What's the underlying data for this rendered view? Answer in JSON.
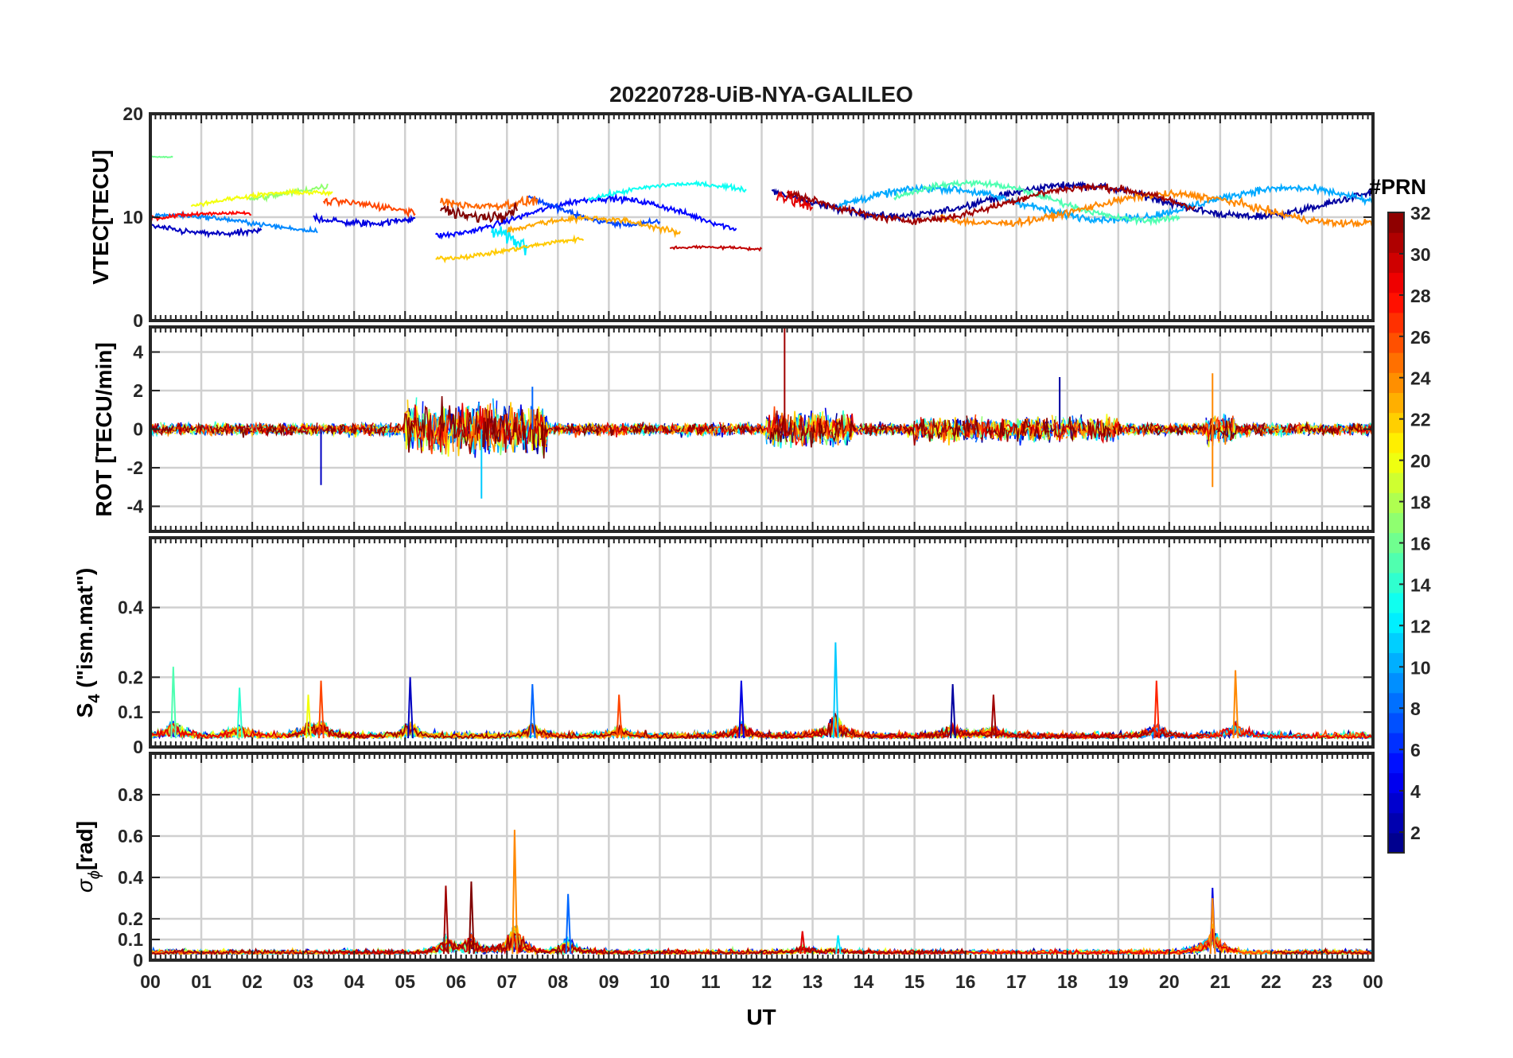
{
  "chart_data": {
    "type": "line",
    "title": "20220728-UiB-NYA-GALILEO",
    "xlabel": "UT",
    "x_ticks": [
      "00",
      "01",
      "02",
      "03",
      "04",
      "05",
      "06",
      "07",
      "08",
      "09",
      "10",
      "11",
      "12",
      "13",
      "14",
      "15",
      "16",
      "17",
      "18",
      "19",
      "20",
      "21",
      "22",
      "23",
      "00"
    ],
    "xlim_hours": [
      0,
      24
    ],
    "colorbar": {
      "title": "#PRN",
      "range": [
        1,
        32
      ],
      "ticks": [
        "2",
        "4",
        "6",
        "8",
        "10",
        "12",
        "14",
        "16",
        "18",
        "20",
        "22",
        "24",
        "26",
        "28",
        "30",
        "32"
      ],
      "colormap": "jet"
    },
    "panels": [
      {
        "id": "vtec",
        "ylabel": "VTEC[TECU]",
        "ylim": [
          0,
          20
        ],
        "y_ticks": [
          0,
          10,
          20
        ],
        "y_tick_labels": [
          "0",
          "10",
          "20"
        ],
        "series": [
          {
            "prn": 2,
            "start": 12.2,
            "end": 24,
            "base": 11.6,
            "amp": 1.5,
            "noise": 0.5
          },
          {
            "prn": 3,
            "start": 0,
            "end": 2.2,
            "base": 9.6,
            "amp": 1.2,
            "noise": 0.4
          },
          {
            "prn": 4,
            "start": 3.2,
            "end": 5.2,
            "base": 11,
            "amp": 1.6,
            "noise": 0.5
          },
          {
            "prn": 5,
            "start": 5.6,
            "end": 11.5,
            "base": 10,
            "amp": 1.8,
            "noise": 0.4
          },
          {
            "prn": 7,
            "start": 7.4,
            "end": 10,
            "base": 11.5,
            "amp": 2.2,
            "noise": 0.4
          },
          {
            "prn": 9,
            "start": 0.1,
            "end": 3.3,
            "base": 9.4,
            "amp": 0.8,
            "noise": 0.3
          },
          {
            "prn": 10,
            "start": 13.5,
            "end": 24,
            "base": 11.3,
            "amp": 1.5,
            "noise": 0.5
          },
          {
            "prn": 12,
            "start": 6.7,
            "end": 7.4,
            "base": 6.5,
            "amp": 3.0,
            "noise": 1.0
          },
          {
            "prn": 13,
            "start": 8.6,
            "end": 11.7,
            "base": 12,
            "amp": 1.2,
            "noise": 0.3
          },
          {
            "prn": 15,
            "start": 14.6,
            "end": 20.2,
            "base": 11.5,
            "amp": 1.8,
            "noise": 0.4
          },
          {
            "prn": 16,
            "start": 0,
            "end": 0.45,
            "base": 16,
            "amp": 0.2,
            "noise": 0.1
          },
          {
            "prn": 17,
            "start": 1.9,
            "end": 3.5,
            "base": 12.5,
            "amp": 1.0,
            "noise": 0.4
          },
          {
            "prn": 20,
            "start": 0.8,
            "end": 3.6,
            "base": 11.5,
            "amp": 0.9,
            "noise": 0.3
          },
          {
            "prn": 22,
            "start": 5.6,
            "end": 8.5,
            "base": 7,
            "amp": 1.0,
            "noise": 0.3
          },
          {
            "prn": 23,
            "start": 7.0,
            "end": 10.4,
            "base": 8.5,
            "amp": 1.4,
            "noise": 0.4
          },
          {
            "prn": 24,
            "start": 15.5,
            "end": 24,
            "base": 10.8,
            "amp": 1.4,
            "noise": 0.5
          },
          {
            "prn": 25,
            "start": 5.7,
            "end": 7.6,
            "base": 12.5,
            "amp": 1.4,
            "noise": 0.6
          },
          {
            "prn": 26,
            "start": 3.4,
            "end": 5.2,
            "base": 10.5,
            "amp": 1.0,
            "noise": 0.5
          },
          {
            "prn": 28,
            "start": 0,
            "end": 2.0,
            "base": 9.8,
            "amp": 0.6,
            "noise": 0.3
          },
          {
            "prn": 29,
            "start": 12.3,
            "end": 13.0,
            "base": 10,
            "amp": 3.0,
            "noise": 1.0
          },
          {
            "prn": 30,
            "start": 10.2,
            "end": 12.0,
            "base": 6.7,
            "amp": 0.4,
            "noise": 0.2
          },
          {
            "prn": 31,
            "start": 12.5,
            "end": 20.5,
            "base": 11.3,
            "amp": 1.6,
            "noise": 0.5
          },
          {
            "prn": 32,
            "start": 5.7,
            "end": 7.2,
            "base": 14,
            "amp": 4.0,
            "noise": 0.8
          }
        ]
      },
      {
        "id": "rot",
        "ylabel": "ROT [TECU/min]",
        "ylim": [
          -5.3,
          5.3
        ],
        "y_ticks": [
          -4,
          -2,
          0,
          2,
          4
        ],
        "y_tick_labels": [
          "-4",
          "-2",
          "0",
          "2",
          "4"
        ],
        "activity": [
          {
            "start": 0,
            "end": 24,
            "level": 0.3
          },
          {
            "start": 5.0,
            "end": 7.8,
            "level": 1.3
          },
          {
            "start": 12.1,
            "end": 13.8,
            "level": 0.9
          },
          {
            "start": 15.0,
            "end": 19.0,
            "level": 0.6
          },
          {
            "start": 20.7,
            "end": 21.3,
            "level": 0.8
          }
        ],
        "peaks": [
          {
            "t": 12.45,
            "v": 5.3,
            "prn": 31
          },
          {
            "t": 20.85,
            "v": 2.9,
            "prn": 24
          },
          {
            "t": 20.85,
            "v": -3.0,
            "prn": 24
          },
          {
            "t": 6.5,
            "v": -3.6,
            "prn": 11
          },
          {
            "t": 3.35,
            "v": -2.9,
            "prn": 3
          },
          {
            "t": 7.5,
            "v": 2.2,
            "prn": 8
          },
          {
            "t": 17.85,
            "v": 2.7,
            "prn": 2
          }
        ]
      },
      {
        "id": "s4",
        "ylabel": "S",
        "ylabel_sub": "4",
        "ylabel_rest": " (\"ism.mat\")",
        "ylim": [
          0,
          0.6
        ],
        "y_ticks": [
          0,
          0.1,
          0.2,
          0.4
        ],
        "y_tick_labels": [
          "0",
          "0.1",
          "0.2",
          "0.4"
        ],
        "baseline": 0.025,
        "peaks": [
          {
            "t": 0.45,
            "v": 0.23,
            "prn": 15
          },
          {
            "t": 1.75,
            "v": 0.17,
            "prn": 14
          },
          {
            "t": 3.35,
            "v": 0.19,
            "prn": 26
          },
          {
            "t": 3.1,
            "v": 0.15,
            "prn": 20
          },
          {
            "t": 5.1,
            "v": 0.2,
            "prn": 3
          },
          {
            "t": 7.5,
            "v": 0.18,
            "prn": 8
          },
          {
            "t": 9.2,
            "v": 0.15,
            "prn": 26
          },
          {
            "t": 11.6,
            "v": 0.19,
            "prn": 4
          },
          {
            "t": 13.45,
            "v": 0.3,
            "prn": 11
          },
          {
            "t": 15.75,
            "v": 0.18,
            "prn": 2
          },
          {
            "t": 16.55,
            "v": 0.15,
            "prn": 31
          },
          {
            "t": 19.75,
            "v": 0.19,
            "prn": 27
          },
          {
            "t": 21.3,
            "v": 0.22,
            "prn": 24
          }
        ]
      },
      {
        "id": "sigma_phi",
        "ylabel": "σ",
        "ylabel_sub": "ϕ",
        "ylabel_rest": "[rad]",
        "ylim": [
          0,
          1.0
        ],
        "y_ticks": [
          0,
          0.1,
          0.2,
          0.4,
          0.6,
          0.8
        ],
        "y_tick_labels": [
          "0",
          "0.1",
          "0.2",
          "0.4",
          "0.6",
          "0.8"
        ],
        "baseline": 0.03,
        "peaks": [
          {
            "t": 7.15,
            "v": 0.63,
            "prn": 24
          },
          {
            "t": 6.3,
            "v": 0.38,
            "prn": 32
          },
          {
            "t": 5.8,
            "v": 0.36,
            "prn": 31
          },
          {
            "t": 8.2,
            "v": 0.32,
            "prn": 8
          },
          {
            "t": 20.85,
            "v": 0.35,
            "prn": 4
          },
          {
            "t": 20.85,
            "v": 0.3,
            "prn": 24
          },
          {
            "t": 13.5,
            "v": 0.12,
            "prn": 12
          },
          {
            "t": 12.8,
            "v": 0.14,
            "prn": 29
          }
        ]
      }
    ]
  }
}
